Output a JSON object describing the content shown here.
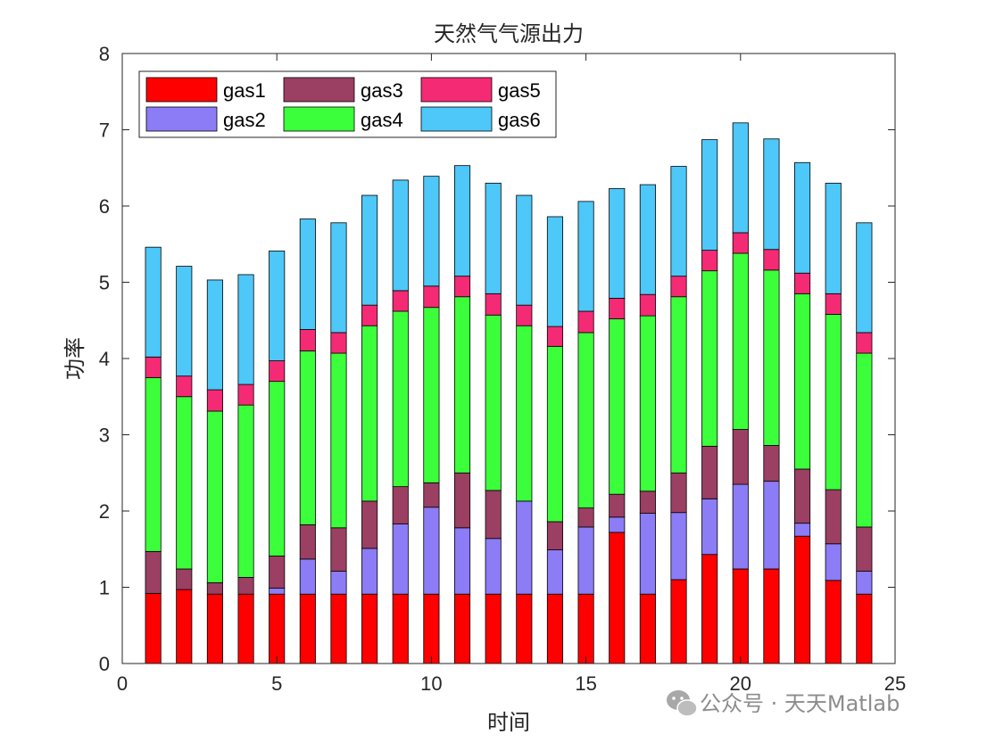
{
  "watermark": {
    "text": "公众号 · 天天Matlab"
  },
  "chart_data": {
    "type": "bar",
    "stacked": true,
    "title": "天然气气源出力",
    "xlabel": "时间",
    "ylabel": "功率",
    "xlim": [
      0,
      25
    ],
    "ylim": [
      0,
      8
    ],
    "xticks": [
      0,
      5,
      10,
      15,
      20,
      25
    ],
    "yticks": [
      0,
      1,
      2,
      3,
      4,
      5,
      6,
      7,
      8
    ],
    "grid": false,
    "legend_position": "top-left",
    "legend_columns": 3,
    "x": [
      1,
      2,
      3,
      4,
      5,
      6,
      7,
      8,
      9,
      10,
      11,
      12,
      13,
      14,
      15,
      16,
      17,
      18,
      19,
      20,
      21,
      22,
      23,
      24
    ],
    "series": [
      {
        "name": "gas1",
        "color": "#ff0000",
        "values": [
          0.92,
          0.97,
          0.91,
          0.91,
          0.91,
          0.91,
          0.91,
          0.91,
          0.91,
          0.91,
          0.91,
          0.91,
          0.91,
          0.91,
          0.91,
          1.72,
          0.91,
          1.1,
          1.43,
          1.24,
          1.24,
          1.67,
          1.09,
          0.91
        ]
      },
      {
        "name": "gas2",
        "color": "#8c7cf6",
        "values": [
          0.0,
          0.0,
          0.0,
          0.0,
          0.08,
          0.46,
          0.3,
          0.6,
          0.92,
          1.14,
          0.87,
          0.73,
          1.22,
          0.58,
          0.88,
          0.2,
          1.06,
          0.88,
          0.73,
          1.11,
          1.15,
          0.17,
          0.48,
          0.3
        ]
      },
      {
        "name": "gas3",
        "color": "#9b3f63",
        "values": [
          0.55,
          0.27,
          0.15,
          0.22,
          0.42,
          0.45,
          0.57,
          0.62,
          0.49,
          0.32,
          0.72,
          0.63,
          0.0,
          0.37,
          0.25,
          0.3,
          0.29,
          0.52,
          0.69,
          0.72,
          0.47,
          0.71,
          0.71,
          0.58
        ]
      },
      {
        "name": "gas4",
        "color": "#3cff3c",
        "values": [
          2.28,
          2.26,
          2.25,
          2.26,
          2.29,
          2.28,
          2.29,
          2.3,
          2.3,
          2.3,
          2.31,
          2.3,
          2.3,
          2.3,
          2.3,
          2.3,
          2.3,
          2.31,
          2.3,
          2.31,
          2.3,
          2.3,
          2.3,
          2.28
        ]
      },
      {
        "name": "gas5",
        "color": "#f52a74",
        "values": [
          0.27,
          0.27,
          0.28,
          0.27,
          0.27,
          0.28,
          0.27,
          0.27,
          0.27,
          0.28,
          0.27,
          0.28,
          0.27,
          0.26,
          0.28,
          0.27,
          0.28,
          0.27,
          0.27,
          0.27,
          0.27,
          0.27,
          0.27,
          0.27
        ]
      },
      {
        "name": "gas6",
        "color": "#4dc8f8",
        "values": [
          1.44,
          1.44,
          1.44,
          1.44,
          1.44,
          1.45,
          1.44,
          1.44,
          1.45,
          1.44,
          1.45,
          1.45,
          1.44,
          1.44,
          1.44,
          1.44,
          1.44,
          1.44,
          1.45,
          1.44,
          1.45,
          1.45,
          1.45,
          1.44
        ]
      }
    ]
  }
}
